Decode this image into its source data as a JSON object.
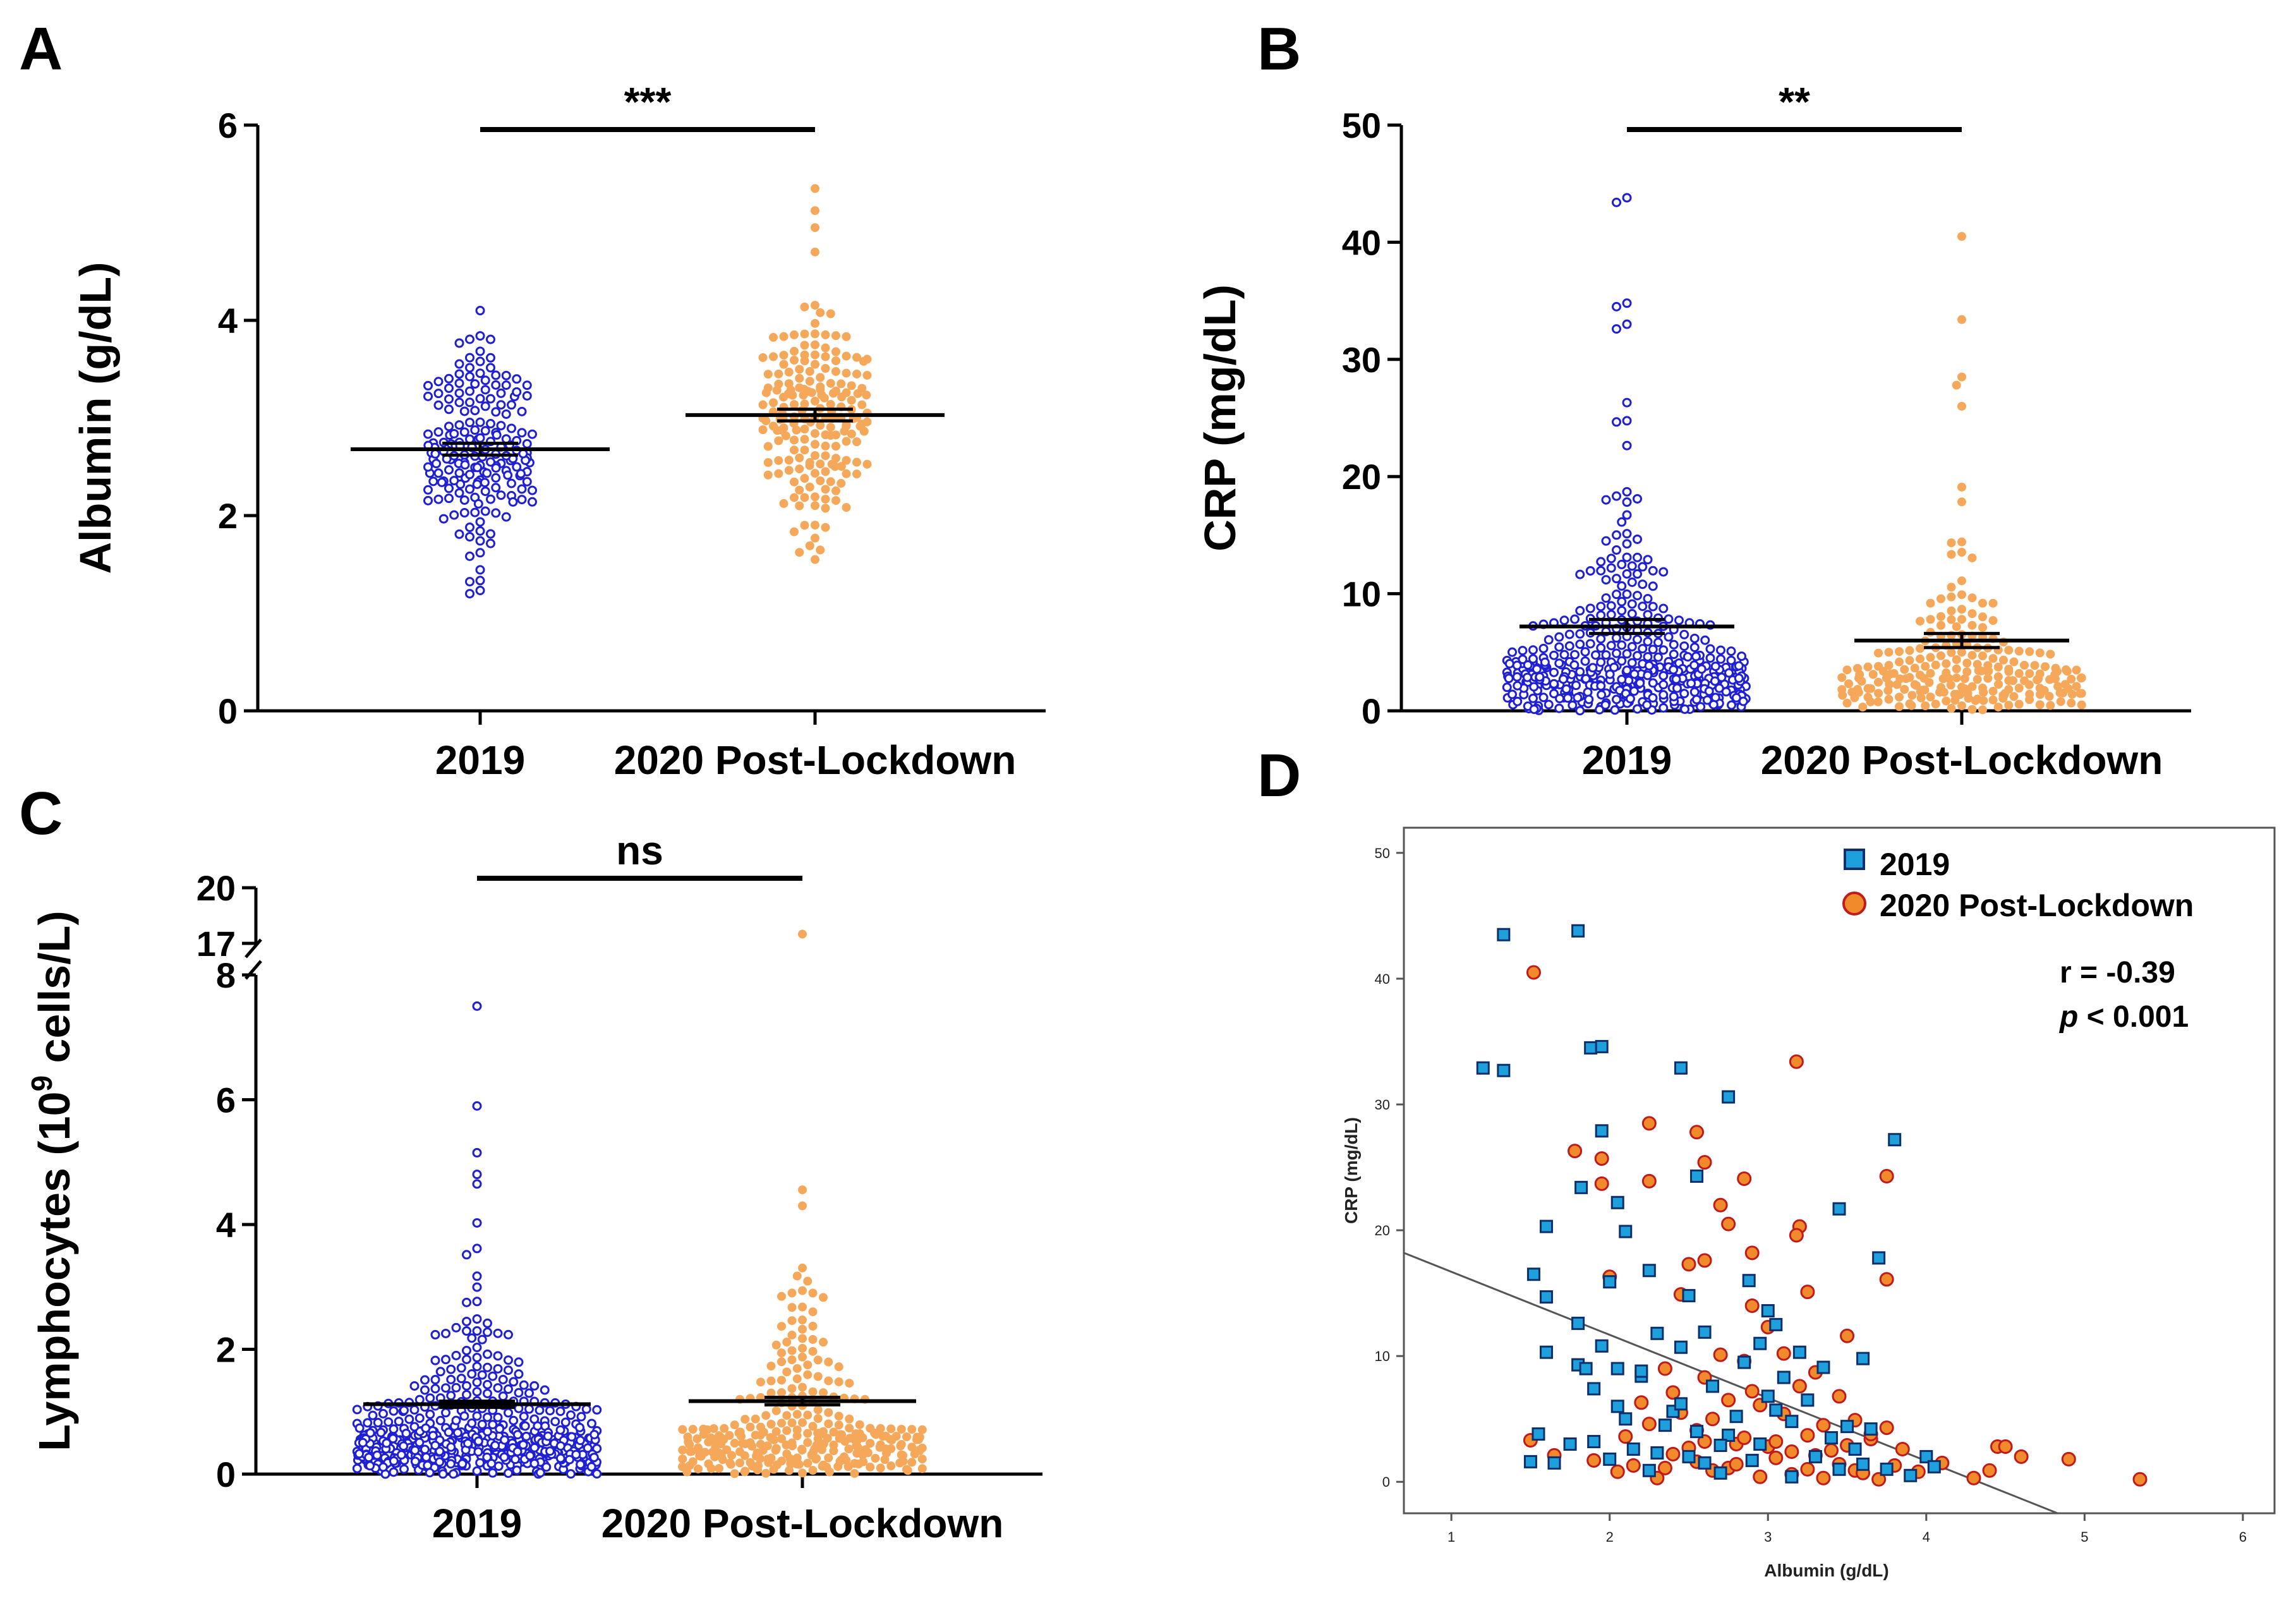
{
  "colors": {
    "y2019": "#1f1fd6",
    "y2020": "#f6a85a",
    "d2019_fill": "#1ea0dc",
    "d2019_edge": "#0d2f6b",
    "d2020_fill": "#f08a2a",
    "d2020_edge": "#c01a1a",
    "axis": "#000000"
  },
  "chart_data": [
    {
      "id": "A",
      "type": "scatter",
      "subtype": "dot-plot",
      "panel_label": "A",
      "categories": [
        "2019",
        "2020 Post-Lockdown"
      ],
      "ylabel": "Albumin (g/dL)",
      "ylim": [
        0,
        6
      ],
      "yticks": [
        "0",
        "2",
        "4",
        "6"
      ],
      "means": [
        2.68,
        3.03
      ],
      "sem": [
        0.06,
        0.06
      ],
      "distribution": [
        {
          "n": 190,
          "min": 1.2,
          "max": 4.1,
          "mean": 2.68,
          "sd": 0.6
        },
        {
          "n": 190,
          "min": 1.5,
          "max": 5.35,
          "mean": 3.03,
          "sd": 0.55
        }
      ],
      "outliers": [
        [
          4.1,
          1.2
        ],
        [
          5.35,
          4.95,
          4.7,
          1.55
        ]
      ],
      "significance": "***"
    },
    {
      "id": "B",
      "type": "scatter",
      "subtype": "dot-plot",
      "panel_label": "B",
      "categories": [
        "2019",
        "2020 Post-Lockdown"
      ],
      "ylabel": "CRP (mg/dL)",
      "ylim": [
        0,
        50
      ],
      "yticks": [
        "0",
        "10",
        "20",
        "30",
        "40",
        "50"
      ],
      "means": [
        7.2,
        6.0
      ],
      "sem": [
        0.6,
        0.6
      ],
      "distribution": [
        {
          "n": 420,
          "min": 0.0,
          "max": 43.8,
          "mean": 7.2,
          "skew": "right"
        },
        {
          "n": 230,
          "min": 0.0,
          "max": 40.5,
          "mean": 6.0,
          "skew": "right"
        }
      ],
      "outliers": [
        [
          43.8,
          43.4,
          34.8,
          34.5,
          33.0,
          32.6
        ],
        [
          40.5,
          33.4,
          28.5,
          27.8,
          26.0
        ]
      ],
      "significance": "**"
    },
    {
      "id": "C",
      "type": "scatter",
      "subtype": "dot-plot",
      "panel_label": "C",
      "categories": [
        "2019",
        "2020 Post-Lockdown"
      ],
      "ylabel_prefix": "Lymphocytes (10",
      "ylabel_sup": "9",
      "ylabel_suffix": " cells/L)",
      "ylim": [
        0,
        20
      ],
      "axis_break": [
        8,
        17
      ],
      "yticks": [
        "0",
        "2",
        "4",
        "6",
        "8",
        "17",
        "20"
      ],
      "means": [
        1.12,
        1.17
      ],
      "sem": [
        0.05,
        0.06
      ],
      "distribution": [
        {
          "n": 520,
          "min": 0.0,
          "max": 7.5,
          "mean": 1.12,
          "skew": "right"
        },
        {
          "n": 300,
          "min": 0.0,
          "max": 17.5,
          "mean": 1.17,
          "skew": "right"
        }
      ],
      "outliers": [
        [
          7.5,
          5.9,
          4.65
        ],
        [
          17.5,
          4.3
        ]
      ],
      "significance": "ns"
    },
    {
      "id": "D",
      "type": "scatter",
      "panel_label": "D",
      "xlabel": "Albumin (g/dL)",
      "ylabel": "CRP (mg/dL)",
      "xlim": [
        0.7,
        6.2
      ],
      "ylim": [
        -2.5,
        52
      ],
      "xticks": [
        "1",
        "2",
        "3",
        "4",
        "5",
        "6"
      ],
      "yticks": [
        "0",
        "10",
        "20",
        "30",
        "40",
        "50"
      ],
      "series": [
        {
          "name": "2019",
          "marker": "square",
          "points": [
            [
              1.33,
              43.5
            ],
            [
              1.8,
              43.8
            ],
            [
              1.2,
              32.9
            ],
            [
              1.33,
              32.7
            ],
            [
              1.88,
              34.5
            ],
            [
              1.95,
              34.6
            ],
            [
              2.45,
              32.9
            ],
            [
              2.75,
              30.6
            ],
            [
              3.8,
              27.2
            ],
            [
              1.95,
              27.9
            ],
            [
              2.55,
              24.3
            ],
            [
              2.05,
              22.2
            ],
            [
              2.1,
              19.9
            ],
            [
              1.6,
              20.3
            ],
            [
              1.82,
              23.4
            ],
            [
              3.45,
              21.7
            ],
            [
              3.7,
              17.8
            ],
            [
              2.25,
              16.8
            ],
            [
              1.52,
              16.5
            ],
            [
              1.6,
              14.7
            ],
            [
              2.0,
              15.9
            ],
            [
              2.5,
              14.8
            ],
            [
              2.88,
              16.0
            ],
            [
              3.0,
              13.6
            ],
            [
              1.8,
              12.6
            ],
            [
              1.6,
              10.3
            ],
            [
              2.3,
              11.8
            ],
            [
              2.45,
              10.7
            ],
            [
              2.95,
              11.0
            ],
            [
              3.6,
              9.8
            ],
            [
              1.8,
              9.3
            ],
            [
              2.05,
              9.0
            ],
            [
              2.2,
              8.4
            ],
            [
              2.65,
              7.6
            ],
            [
              3.1,
              8.3
            ],
            [
              1.9,
              7.4
            ],
            [
              2.05,
              6.0
            ],
            [
              2.4,
              5.6
            ],
            [
              2.8,
              5.2
            ],
            [
              3.05,
              5.7
            ],
            [
              3.5,
              4.4
            ],
            [
              1.55,
              3.8
            ],
            [
              1.9,
              3.2
            ],
            [
              2.15,
              2.6
            ],
            [
              2.5,
              2.0
            ],
            [
              2.9,
              1.7
            ],
            [
              3.3,
              2.0
            ],
            [
              4.0,
              2.0
            ],
            [
              1.5,
              1.6
            ],
            [
              1.65,
              1.5
            ],
            [
              2.25,
              0.9
            ],
            [
              2.7,
              0.7
            ],
            [
              3.15,
              0.4
            ],
            [
              3.6,
              1.4
            ],
            [
              3.9,
              0.5
            ],
            [
              2.6,
              1.5
            ],
            [
              3.4,
              3.5
            ],
            [
              2.35,
              4.5
            ],
            [
              3.75,
              1.0
            ],
            [
              2.95,
              3.0
            ],
            [
              3.25,
              6.5
            ],
            [
              1.75,
              3.0
            ],
            [
              2.0,
              1.8
            ],
            [
              2.75,
              3.7
            ],
            [
              3.55,
              2.6
            ],
            [
              2.45,
              6.2
            ],
            [
              3.15,
              4.8
            ],
            [
              2.85,
              9.5
            ],
            [
              1.95,
              10.8
            ],
            [
              2.6,
              11.9
            ],
            [
              3.35,
              9.1
            ],
            [
              4.05,
              1.2
            ],
            [
              3.05,
              12.5
            ],
            [
              2.3,
              2.3
            ],
            [
              1.85,
              9.0
            ],
            [
              3.2,
              10.3
            ],
            [
              2.7,
              2.9
            ],
            [
              3.65,
              4.2
            ],
            [
              2.2,
              8.8
            ],
            [
              3.0,
              6.8
            ],
            [
              2.55,
              4.0
            ],
            [
              3.45,
              1.0
            ],
            [
              2.1,
              5.0
            ]
          ]
        },
        {
          "name": "2020 Post-Lockdown",
          "marker": "circle",
          "points": [
            [
              1.52,
              40.5
            ],
            [
              3.18,
              33.4
            ],
            [
              2.25,
              28.5
            ],
            [
              2.55,
              27.8
            ],
            [
              1.78,
              26.3
            ],
            [
              1.95,
              25.7
            ],
            [
              2.6,
              25.4
            ],
            [
              3.75,
              24.3
            ],
            [
              2.85,
              24.1
            ],
            [
              1.95,
              23.7
            ],
            [
              2.25,
              23.9
            ],
            [
              2.7,
              22.0
            ],
            [
              3.2,
              20.3
            ],
            [
              3.18,
              19.6
            ],
            [
              2.75,
              20.5
            ],
            [
              2.9,
              18.2
            ],
            [
              2.6,
              17.6
            ],
            [
              2.5,
              17.3
            ],
            [
              3.75,
              16.1
            ],
            [
              2.0,
              16.3
            ],
            [
              2.45,
              14.9
            ],
            [
              2.9,
              14.0
            ],
            [
              3.25,
              15.1
            ],
            [
              3.0,
              12.3
            ],
            [
              3.1,
              10.2
            ],
            [
              2.85,
              9.6
            ],
            [
              2.7,
              10.1
            ],
            [
              3.5,
              11.6
            ],
            [
              2.35,
              9.0
            ],
            [
              3.3,
              8.7
            ],
            [
              3.2,
              7.6
            ],
            [
              2.6,
              8.3
            ],
            [
              2.9,
              7.2
            ],
            [
              3.45,
              6.8
            ],
            [
              2.45,
              5.5
            ],
            [
              3.1,
              5.4
            ],
            [
              3.55,
              4.9
            ],
            [
              2.25,
              4.6
            ],
            [
              3.75,
              4.3
            ],
            [
              2.55,
              4.1
            ],
            [
              3.25,
              3.7
            ],
            [
              3.65,
              3.4
            ],
            [
              2.8,
              3.0
            ],
            [
              3.0,
              2.8
            ],
            [
              3.4,
              2.5
            ],
            [
              2.4,
              2.2
            ],
            [
              3.85,
              2.6
            ],
            [
              4.3,
              0.3
            ],
            [
              4.45,
              2.8
            ],
            [
              4.5,
              2.8
            ],
            [
              4.6,
              2.0
            ],
            [
              4.9,
              1.8
            ],
            [
              5.35,
              0.2
            ],
            [
              4.4,
              0.9
            ],
            [
              4.1,
              1.5
            ],
            [
              3.95,
              0.8
            ],
            [
              2.15,
              1.3
            ],
            [
              2.35,
              1.1
            ],
            [
              2.65,
              0.9
            ],
            [
              2.95,
              0.4
            ],
            [
              3.15,
              0.6
            ],
            [
              3.35,
              0.3
            ],
            [
              3.55,
              0.9
            ],
            [
              3.7,
              0.2
            ],
            [
              1.5,
              3.3
            ],
            [
              1.65,
              2.1
            ],
            [
              1.9,
              1.7
            ],
            [
              2.05,
              0.8
            ],
            [
              2.3,
              0.3
            ],
            [
              2.55,
              1.6
            ],
            [
              2.75,
              1.1
            ],
            [
              3.05,
              1.9
            ],
            [
              3.25,
              1.0
            ],
            [
              3.45,
              1.4
            ],
            [
              3.6,
              0.7
            ],
            [
              3.8,
              1.3
            ],
            [
              2.2,
              6.3
            ],
            [
              2.65,
              5.0
            ],
            [
              2.85,
              3.5
            ],
            [
              3.05,
              3.2
            ],
            [
              3.3,
              2.1
            ],
            [
              3.5,
              2.9
            ],
            [
              2.5,
              2.7
            ],
            [
              2.8,
              1.4
            ],
            [
              2.4,
              7.1
            ],
            [
              2.95,
              6.1
            ],
            [
              3.65,
              3.8
            ],
            [
              2.1,
              3.6
            ],
            [
              3.35,
              4.5
            ],
            [
              2.6,
              3.2
            ],
            [
              2.75,
              6.5
            ],
            [
              3.15,
              2.4
            ]
          ]
        }
      ],
      "fit_line": {
        "x": [
          0.7,
          4.83
        ],
        "y": [
          18.2,
          -2.5
        ]
      },
      "r_label": "r = -0.39",
      "p_label_italic": "p",
      "p_label_rest": " < 0.001"
    }
  ]
}
